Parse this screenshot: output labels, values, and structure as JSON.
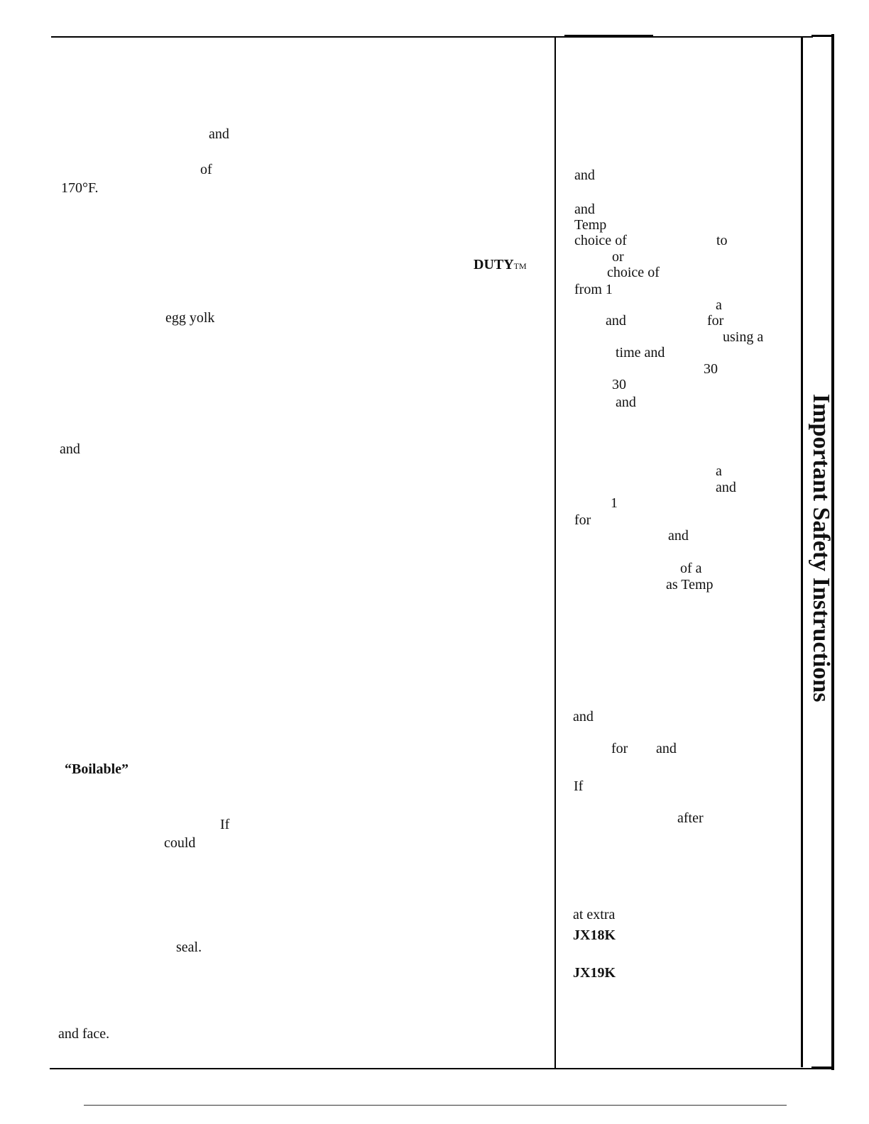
{
  "sidebar": {
    "title": "Important Safety Instructions"
  },
  "left_column": {
    "w1": "and",
    "w2": "of",
    "w3": "170°F.",
    "w4": "DUTY",
    "w4_sup": "TM",
    "w5": "egg yolk",
    "w6": "and",
    "w7": "“Boilable”",
    "w8": "If",
    "w9": "could",
    "w10": "seal.",
    "w11": "and face."
  },
  "right_column": {
    "r1": "and",
    "r2": "and",
    "r3": "Temp",
    "r4": "choice of",
    "r5": "to",
    "r6": "or",
    "r7": "choice of",
    "r8": "from 1",
    "r9": "a",
    "r10": "and",
    "r11": "for",
    "r12": "using a",
    "r13": "time and",
    "r14": "30",
    "r15": "30",
    "r16": "and",
    "r17": "a",
    "r18": "and",
    "r19": "1",
    "r20": "for",
    "r21": "and",
    "r22": "of a",
    "r23": "as Temp",
    "r24": "and",
    "r25": "for",
    "r26": "and",
    "r27": "If",
    "r28": "after",
    "r29": "at extra",
    "r30": "JX18K",
    "r31": "JX19K"
  }
}
